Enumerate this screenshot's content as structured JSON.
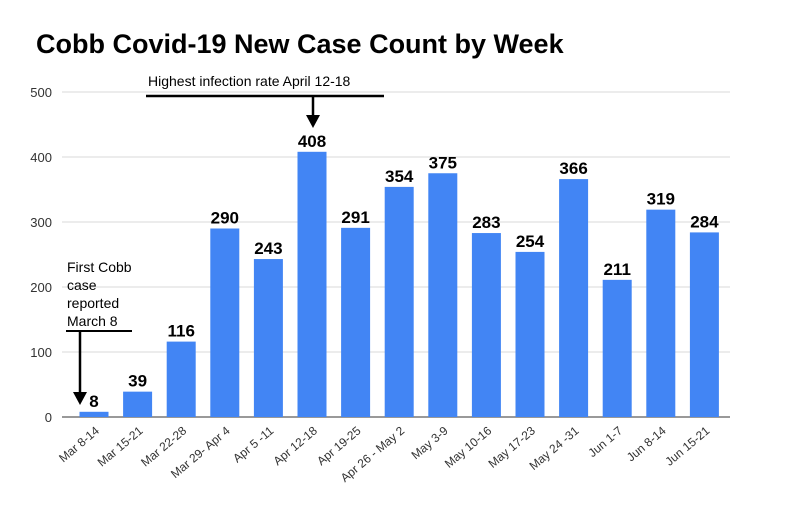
{
  "colors": {
    "bar": "#4285f4",
    "grid": "#d9d9d9",
    "text": "#000000"
  },
  "chart_data": {
    "type": "bar",
    "title": "Cobb Covid-19 New Case Count by Week",
    "xlabel": "",
    "ylabel": "",
    "ylim": [
      0,
      500
    ],
    "yticks": [
      0,
      100,
      200,
      300,
      400,
      500
    ],
    "grid": true,
    "categories": [
      "Mar 8-14",
      "Mar 15-21",
      "Mar 22-28",
      "Mar 29- Apr 4",
      "Apr 5 -11",
      "Apr 12-18",
      "Apr 19-25",
      "Apr 26 - May 2",
      "May 3-9",
      "May 10-16",
      "May 17-23",
      "May 24 -31",
      "Jun 1-7",
      "Jun 8-14",
      "Jun 15-21"
    ],
    "values": [
      8,
      39,
      116,
      290,
      243,
      408,
      291,
      354,
      375,
      283,
      254,
      366,
      211,
      319,
      284
    ],
    "annotations": [
      {
        "text": "Highest infection rate April 12-18",
        "category": "Apr 12-18"
      },
      {
        "text_lines": [
          "First Cobb",
          "case",
          "reported",
          "March 8"
        ],
        "category": "Mar 8-14"
      }
    ]
  }
}
